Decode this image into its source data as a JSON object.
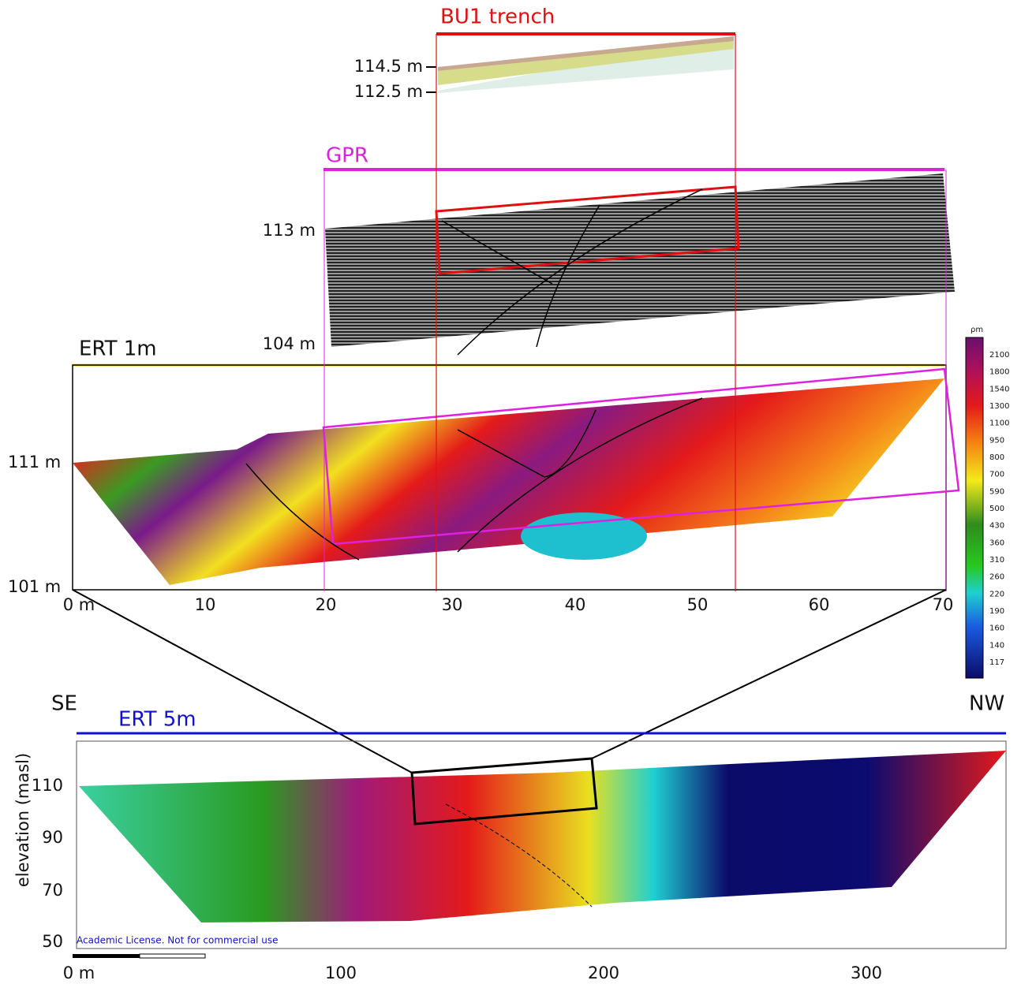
{
  "trench": {
    "title": "BU1 trench",
    "elev_labels": [
      "114.5 m",
      "112.5 m"
    ]
  },
  "gpr": {
    "title": "GPR",
    "elev_labels": [
      "113 m",
      "104 m"
    ]
  },
  "ert1": {
    "title": "ERT 1m",
    "elev_labels": [
      "111 m",
      "101 m"
    ],
    "x_labels": [
      "0 m",
      "10",
      "20",
      "30",
      "40",
      "50",
      "60",
      "70"
    ]
  },
  "colorbar": {
    "unit": "ρm",
    "labels": [
      "2100",
      "1800",
      "1540",
      "1300",
      "1100",
      "950",
      "800",
      "700",
      "590",
      "500",
      "430",
      "360",
      "310",
      "260",
      "220",
      "190",
      "160",
      "140",
      "117"
    ]
  },
  "ert5": {
    "left": "SE",
    "right": "NW",
    "title": "ERT 5m",
    "y_axis_label": "elevation (masl)",
    "y_labels": [
      "110",
      "90",
      "70",
      "50"
    ],
    "x_labels": [
      "0 m",
      "100",
      "200",
      "300"
    ],
    "license": "Academic License. Not for commercial use"
  }
}
